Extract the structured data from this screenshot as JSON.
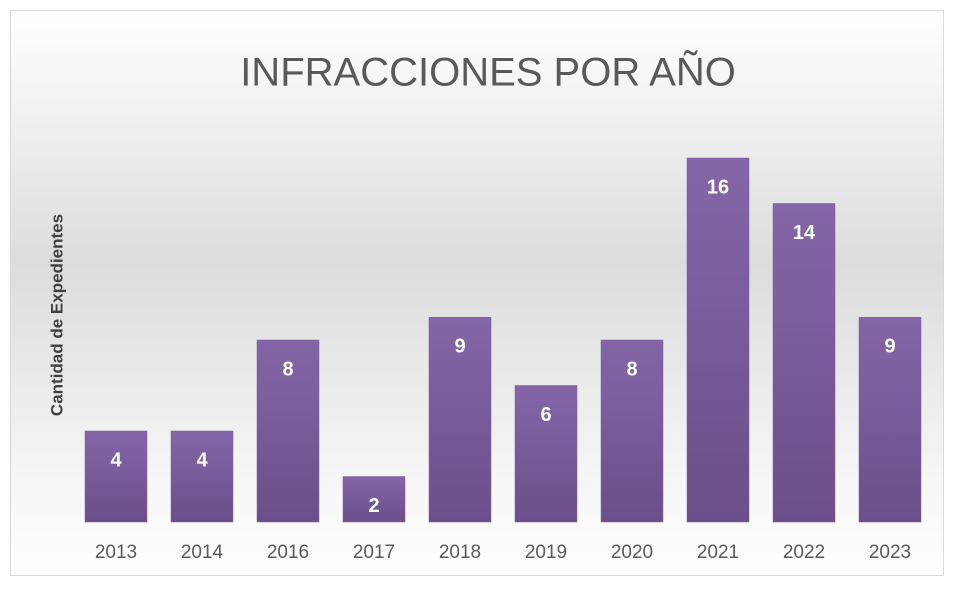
{
  "chart_data": {
    "type": "bar",
    "title": "INFRACCIONES POR AÑO",
    "y_label": "Cantidad de Expedientes",
    "categories": [
      "2013",
      "2014",
      "2016",
      "2017",
      "2018",
      "2019",
      "2020",
      "2021",
      "2022",
      "2023"
    ],
    "values": [
      4,
      4,
      8,
      2,
      9,
      6,
      8,
      16,
      14,
      9
    ],
    "color": "#7b5f9e",
    "ylim": [
      0,
      18
    ]
  }
}
